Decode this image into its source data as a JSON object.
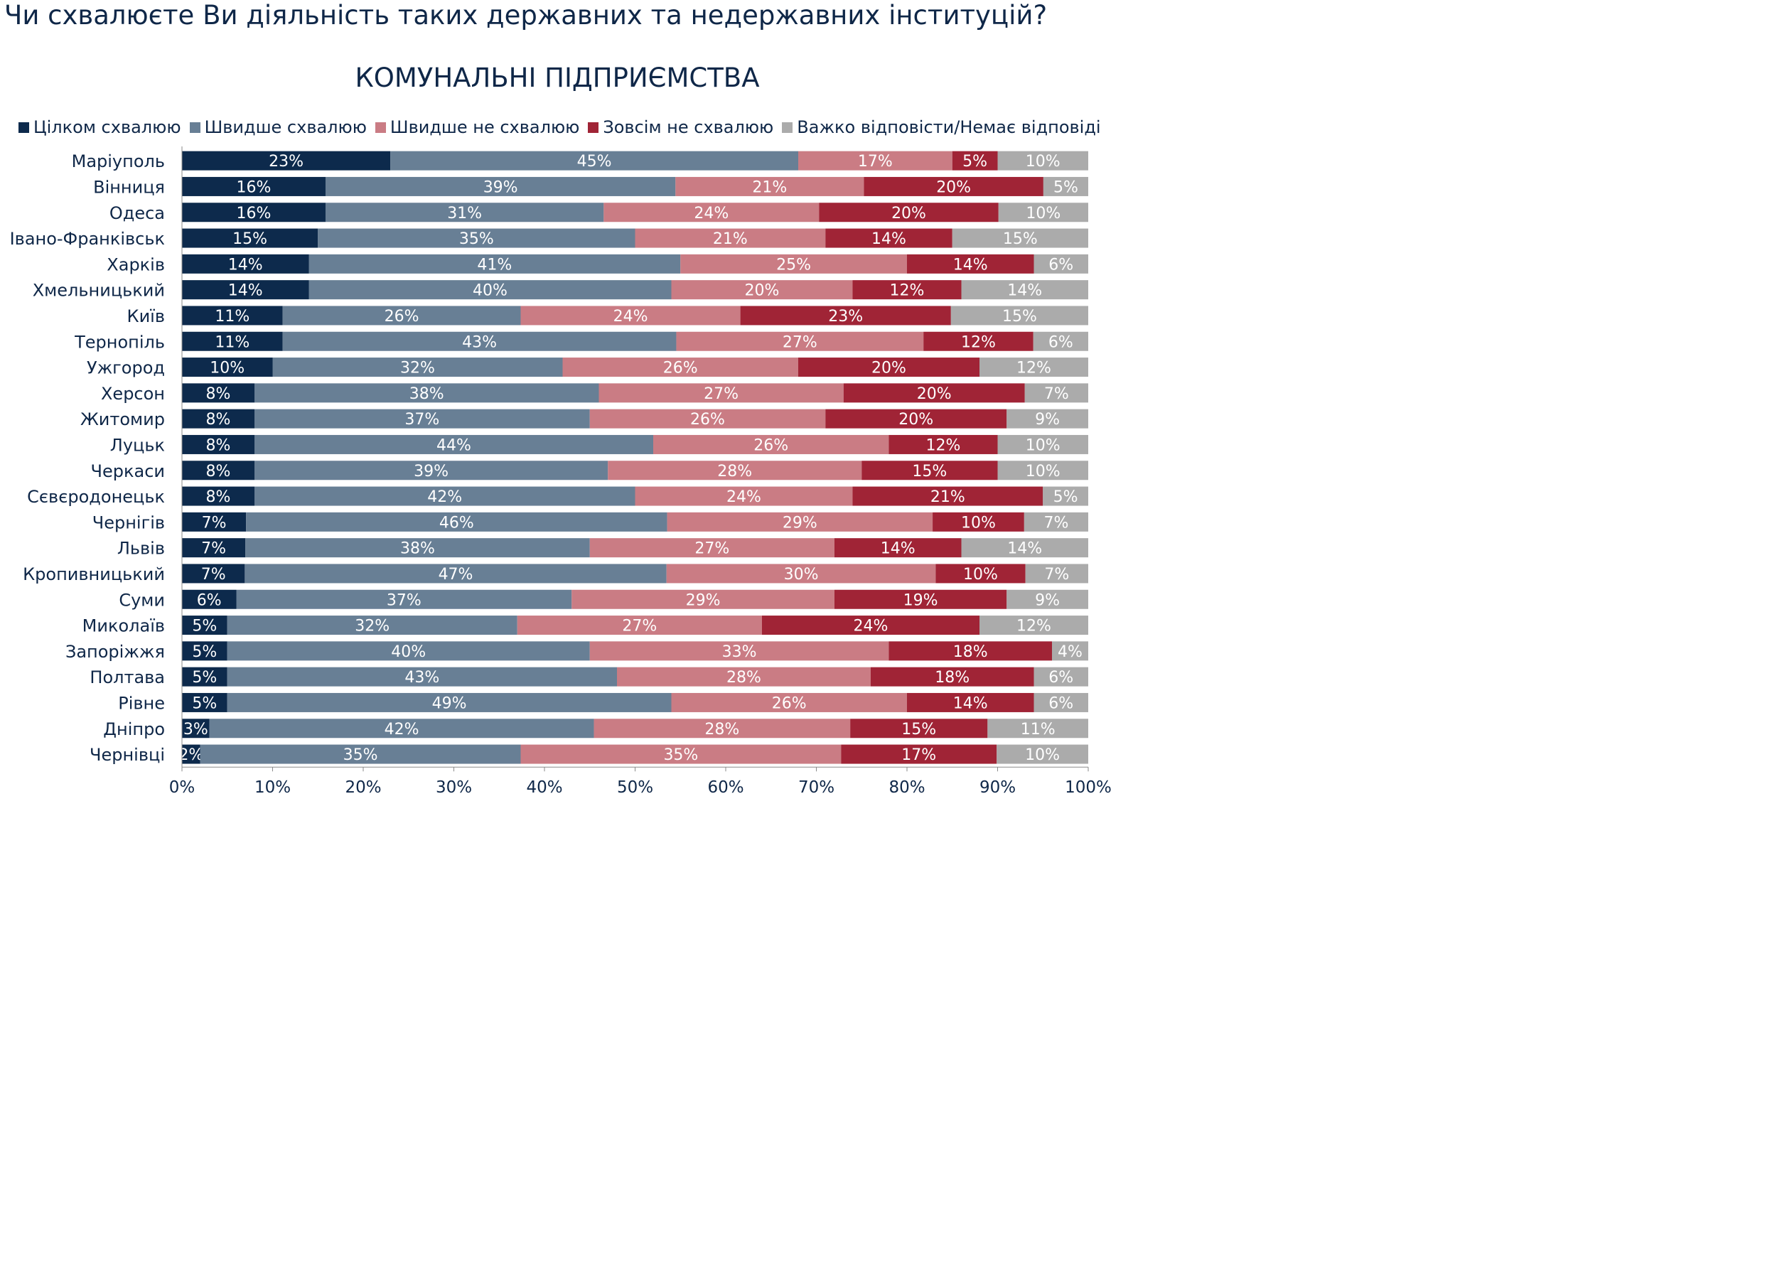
{
  "page_title": "Чи схвалюєте Ви діяльність таких державних та недержавних інституцій?",
  "chart_data": {
    "type": "bar",
    "orientation": "horizontal",
    "stacked": true,
    "percent": true,
    "title": "КОМУНАЛЬНІ ПІДПРИЄМСТВА",
    "xlim": [
      0,
      100
    ],
    "x_ticks": [
      "0%",
      "10%",
      "20%",
      "30%",
      "40%",
      "50%",
      "60%",
      "70%",
      "80%",
      "90%",
      "100%"
    ],
    "legend_position": "top",
    "categories": [
      "Маріуполь",
      "Вінниця",
      "Одеса",
      "Івано-Франківськ",
      "Харків",
      "Хмельницький",
      "Київ",
      "Тернопіль",
      "Ужгород",
      "Херсон",
      "Житомир",
      "Луцьк",
      "Черкаси",
      "Сєвєродонецьк",
      "Чернігів",
      "Львів",
      "Кропивницький",
      "Суми",
      "Миколаїв",
      "Запоріжжя",
      "Полтава",
      "Рівне",
      "Дніпро",
      "Чернівці"
    ],
    "series": [
      {
        "name": "Цілком схвалюю",
        "color": "#0d2a4c",
        "values": [
          23,
          16,
          16,
          15,
          14,
          14,
          11,
          11,
          10,
          8,
          8,
          8,
          8,
          8,
          7,
          7,
          7,
          6,
          5,
          5,
          5,
          5,
          3,
          2
        ]
      },
      {
        "name": "Швидше схвалюю",
        "color": "#687f95",
        "values": [
          45,
          39,
          31,
          35,
          41,
          40,
          26,
          43,
          32,
          38,
          37,
          44,
          39,
          42,
          46,
          38,
          47,
          37,
          32,
          40,
          43,
          49,
          42,
          35
        ]
      },
      {
        "name": "Швидше не схвалюю",
        "color": "#ca7c84",
        "values": [
          17,
          21,
          24,
          21,
          25,
          20,
          24,
          27,
          26,
          27,
          26,
          26,
          28,
          24,
          29,
          27,
          30,
          29,
          27,
          33,
          28,
          26,
          28,
          35
        ]
      },
      {
        "name": "Зовсім не схвалюю",
        "color": "#a02436",
        "values": [
          5,
          20,
          20,
          14,
          14,
          12,
          23,
          12,
          20,
          20,
          20,
          12,
          15,
          21,
          10,
          14,
          10,
          19,
          24,
          18,
          18,
          14,
          15,
          17
        ]
      },
      {
        "name": "Важко відповісти/Немає відповіді",
        "color": "#ababab",
        "values": [
          10,
          5,
          10,
          15,
          6,
          14,
          15,
          6,
          12,
          7,
          9,
          10,
          10,
          5,
          7,
          14,
          7,
          9,
          12,
          4,
          6,
          6,
          11,
          10
        ]
      }
    ]
  }
}
